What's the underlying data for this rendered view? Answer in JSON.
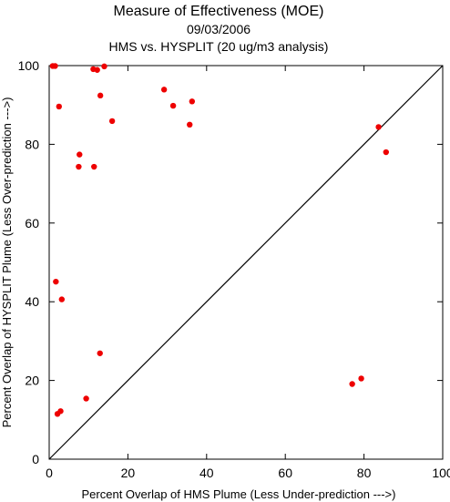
{
  "chart_data": {
    "type": "scatter",
    "title": "Measure of Effectiveness (MOE)",
    "subtitle_date": "09/03/2006",
    "subtitle_analysis": "HMS vs. HYSPLIT  (20 ug/m3 analysis)",
    "xlabel": "Percent Overlap of HMS Plume (Less Under-prediction --->)",
    "ylabel": "Percent Overlap of HYSPLIT Plume (Less Over-prediction --->)",
    "xlim": [
      0,
      100
    ],
    "ylim": [
      0,
      100
    ],
    "x_ticks": [
      "0",
      "20",
      "40",
      "60",
      "80",
      "100"
    ],
    "y_ticks": [
      "0",
      "20",
      "40",
      "60",
      "80",
      "100"
    ],
    "reference_line": "1:1 diagonal",
    "point_color": "#ee0000",
    "points": [
      {
        "x": 0.9,
        "y": 99.9
      },
      {
        "x": 1.5,
        "y": 99.9
      },
      {
        "x": 11.2,
        "y": 99.1
      },
      {
        "x": 12.2,
        "y": 98.9
      },
      {
        "x": 14.0,
        "y": 99.8
      },
      {
        "x": 2.5,
        "y": 89.6
      },
      {
        "x": 13.0,
        "y": 92.4
      },
      {
        "x": 16.0,
        "y": 85.9
      },
      {
        "x": 29.2,
        "y": 93.9
      },
      {
        "x": 31.5,
        "y": 89.8
      },
      {
        "x": 35.7,
        "y": 85.0
      },
      {
        "x": 36.3,
        "y": 90.9
      },
      {
        "x": 83.7,
        "y": 84.4
      },
      {
        "x": 85.6,
        "y": 78.0
      },
      {
        "x": 7.7,
        "y": 77.4
      },
      {
        "x": 7.5,
        "y": 74.3
      },
      {
        "x": 11.4,
        "y": 74.3
      },
      {
        "x": 1.7,
        "y": 45.1
      },
      {
        "x": 3.2,
        "y": 40.6
      },
      {
        "x": 12.9,
        "y": 26.9
      },
      {
        "x": 9.4,
        "y": 15.4
      },
      {
        "x": 2.9,
        "y": 12.2
      },
      {
        "x": 2.1,
        "y": 11.5
      },
      {
        "x": 77.0,
        "y": 19.1
      },
      {
        "x": 79.3,
        "y": 20.5
      }
    ]
  }
}
